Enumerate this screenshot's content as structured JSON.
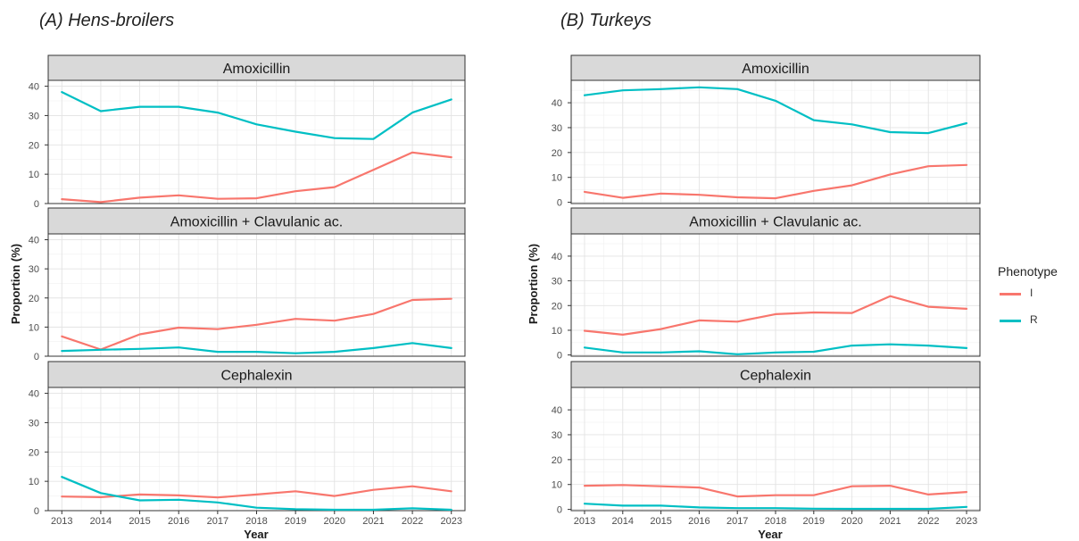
{
  "panel_titles": {
    "left": "(A)  Hens-broilers",
    "right": "(B) Turkeys"
  },
  "legend": {
    "title": "Phenotype",
    "items": [
      {
        "label": "I",
        "color": "#F8766D"
      },
      {
        "label": "R",
        "color": "#00BFC4"
      }
    ]
  },
  "chart_data": [
    {
      "type": "line",
      "title": "(A)  Hens-broilers",
      "xlabel": "Year",
      "ylabel": "Proportion (%)",
      "x": [
        2013,
        2014,
        2015,
        2016,
        2017,
        2018,
        2019,
        2020,
        2021,
        2022,
        2023
      ],
      "grid": true,
      "facets": [
        {
          "strip": "Amoxicillin",
          "ylim": [
            0,
            42
          ],
          "yticks": [
            0,
            10,
            20,
            30,
            40
          ],
          "series": [
            {
              "name": "I",
              "color": "#F8766D",
              "values": [
                1.5,
                0.5,
                2.0,
                2.8,
                1.6,
                1.8,
                4.2,
                5.6,
                11.5,
                17.4,
                15.8
              ]
            },
            {
              "name": "R",
              "color": "#00BFC4",
              "values": [
                38.0,
                31.5,
                33.0,
                33.0,
                31.0,
                27.0,
                24.5,
                22.3,
                22.0,
                31.0,
                35.5
              ]
            }
          ]
        },
        {
          "strip": "Amoxicillin + Clavulanic ac.",
          "ylim": [
            0,
            42
          ],
          "yticks": [
            0,
            10,
            20,
            30,
            40
          ],
          "series": [
            {
              "name": "I",
              "color": "#F8766D",
              "values": [
                6.8,
                2.3,
                7.5,
                9.8,
                9.3,
                10.8,
                12.8,
                12.2,
                14.5,
                19.3,
                19.7
              ]
            },
            {
              "name": "R",
              "color": "#00BFC4",
              "values": [
                1.8,
                2.2,
                2.5,
                3.0,
                1.5,
                1.5,
                1.0,
                1.5,
                2.8,
                4.5,
                2.8
              ]
            }
          ]
        },
        {
          "strip": "Cephalexin",
          "ylim": [
            0,
            42
          ],
          "yticks": [
            0,
            10,
            20,
            30,
            40
          ],
          "series": [
            {
              "name": "I",
              "color": "#F8766D",
              "values": [
                4.8,
                4.6,
                5.5,
                5.2,
                4.5,
                5.5,
                6.6,
                5.0,
                7.1,
                8.3,
                6.6
              ]
            },
            {
              "name": "R",
              "color": "#00BFC4",
              "values": [
                11.5,
                6.0,
                3.5,
                3.7,
                2.8,
                1.0,
                0.5,
                0.3,
                0.3,
                0.8,
                0.3
              ]
            }
          ]
        }
      ]
    },
    {
      "type": "line",
      "title": "(B) Turkeys",
      "xlabel": "Year",
      "ylabel": "Proportion (%)",
      "x": [
        2013,
        2014,
        2015,
        2016,
        2017,
        2018,
        2019,
        2020,
        2021,
        2022,
        2023
      ],
      "grid": true,
      "facets": [
        {
          "strip": "Amoxicillin",
          "ylim": [
            -0.5,
            49
          ],
          "yticks": [
            0,
            10,
            20,
            30,
            40
          ],
          "series": [
            {
              "name": "I",
              "color": "#F8766D",
              "values": [
                4.2,
                1.8,
                3.5,
                3.0,
                2.0,
                1.6,
                4.6,
                6.8,
                11.2,
                14.5,
                15.0
              ]
            },
            {
              "name": "R",
              "color": "#00BFC4",
              "values": [
                43.0,
                45.0,
                45.5,
                46.2,
                45.5,
                40.8,
                33.0,
                31.3,
                28.2,
                27.8,
                31.8
              ]
            }
          ]
        },
        {
          "strip": "Amoxicillin + Clavulanic ac.",
          "ylim": [
            -0.5,
            49
          ],
          "yticks": [
            0,
            10,
            20,
            30,
            40
          ],
          "series": [
            {
              "name": "I",
              "color": "#F8766D",
              "values": [
                9.8,
                8.2,
                10.5,
                14.0,
                13.5,
                16.5,
                17.2,
                17.0,
                23.8,
                19.5,
                18.7
              ]
            },
            {
              "name": "R",
              "color": "#00BFC4",
              "values": [
                3.0,
                1.0,
                1.0,
                1.5,
                0.3,
                1.0,
                1.3,
                3.8,
                4.3,
                3.8,
                2.8
              ]
            }
          ]
        },
        {
          "strip": "Cephalexin",
          "ylim": [
            -0.5,
            49
          ],
          "yticks": [
            0,
            10,
            20,
            30,
            40
          ],
          "series": [
            {
              "name": "I",
              "color": "#F8766D",
              "values": [
                9.5,
                9.8,
                9.3,
                8.8,
                5.2,
                5.7,
                5.7,
                9.3,
                9.5,
                6.0,
                7.0
              ]
            },
            {
              "name": "R",
              "color": "#00BFC4",
              "values": [
                2.3,
                1.5,
                1.5,
                0.8,
                0.5,
                0.5,
                0.3,
                0.2,
                0.2,
                0.2,
                1.0
              ]
            }
          ]
        }
      ]
    }
  ]
}
